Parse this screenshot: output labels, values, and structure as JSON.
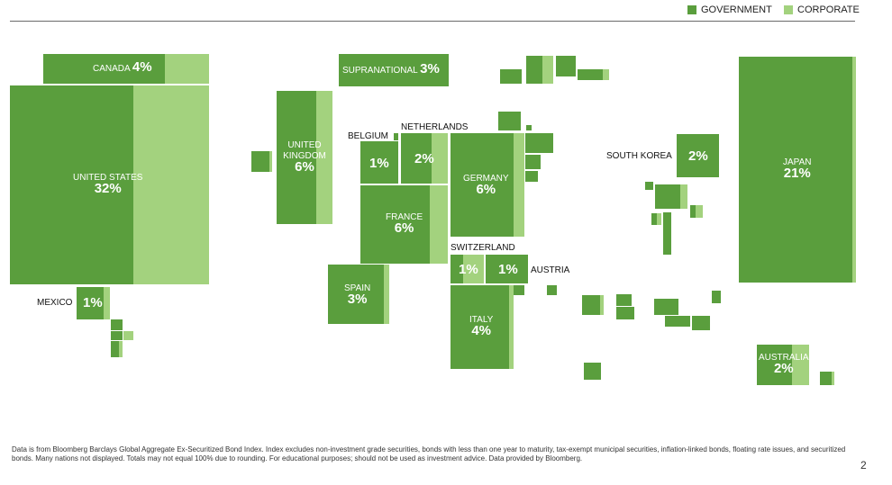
{
  "legend": {
    "government": "GOVERNMENT",
    "corporate": "CORPORATE"
  },
  "colors": {
    "government": "#5a9e3d",
    "corporate": "#a3d27e"
  },
  "countries": {
    "canada": {
      "name": "CANADA",
      "share": "4%"
    },
    "united_states": {
      "name": "UNITED STATES",
      "share": "32%"
    },
    "mexico": {
      "name": "MEXICO",
      "share": "1%"
    },
    "supranational": {
      "name": "SUPRANATIONAL",
      "share": "3%"
    },
    "united_kingdom": {
      "name_line1": "UNITED",
      "name_line2": "KINGDOM",
      "share": "6%"
    },
    "belgium": {
      "name": "BELGIUM",
      "share": "1%"
    },
    "netherlands": {
      "name": "NETHERLANDS",
      "share": "2%"
    },
    "germany": {
      "name": "GERMANY",
      "share": "6%"
    },
    "france": {
      "name": "FRANCE",
      "share": "6%"
    },
    "spain": {
      "name": "SPAIN",
      "share": "3%"
    },
    "switzerland": {
      "name": "SWITZERLAND",
      "share": "1%"
    },
    "austria": {
      "name": "AUSTRIA",
      "share": "1%"
    },
    "italy": {
      "name": "ITALY",
      "share": "4%"
    },
    "south_korea": {
      "name": "SOUTH KOREA",
      "share": "2%"
    },
    "japan": {
      "name": "JAPAN",
      "share": "21%"
    },
    "australia": {
      "name": "AUSTRALIA",
      "share": "2%"
    }
  },
  "footnote": "Data is from Bloomberg Barclays Global Aggregate Ex-Securitized Bond Index. Index excludes non-investment grade securities, bonds with less than one year to maturity, tax-exempt municipal securities, inflation-linked bonds, floating rate issues, and securitized bonds. Many nations not displayed. Totals may not equal 100% due to rounding. For educational purposes; should not be used as investment advice. Data provided by Bloomberg.",
  "page_number": "2"
}
